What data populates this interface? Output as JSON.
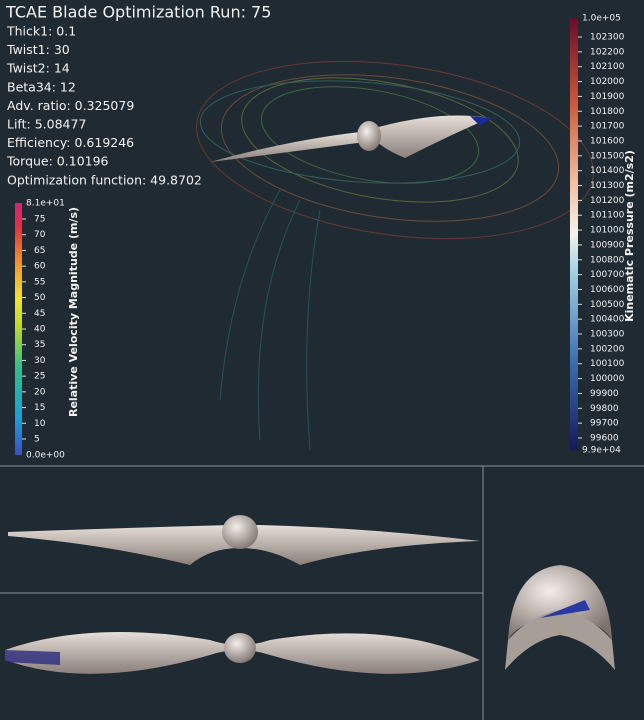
{
  "header": {
    "title": "TCAE Blade Optimization Run: 75"
  },
  "parameters": [
    "Thick1: 0.1",
    "Twist1: 30",
    "Twist2: 14",
    "Beta34: 12",
    "Adv. ratio: 0.325079",
    "Lift: 5.08477",
    "Efficiency: 0.619246",
    "Torque: 0.10196",
    "Optimization function: 49.8702"
  ],
  "velocity_legend": {
    "title": "Relative Velocity  Magnitude (m/s)",
    "max": "8.1e+01",
    "min": "0.0e+00",
    "ticks": [
      "75",
      "70",
      "65",
      "60",
      "55",
      "50",
      "45",
      "40",
      "35",
      "30",
      "25",
      "20",
      "15",
      "10",
      "5"
    ]
  },
  "pressure_legend": {
    "title": "Kinematic Pressure (m2/s2)",
    "max": "1.0e+05",
    "min": "9.9e+04",
    "ticks": [
      "102300",
      "102200",
      "102100",
      "102000",
      "101900",
      "101800",
      "101700",
      "101600",
      "101500",
      "101400",
      "101300",
      "101200",
      "101100",
      "101000",
      "100900",
      "100800",
      "100700",
      "100600",
      "100500",
      "100400",
      "100300",
      "100200",
      "100100",
      "100000",
      "99900",
      "99800",
      "99700",
      "99600"
    ]
  }
}
